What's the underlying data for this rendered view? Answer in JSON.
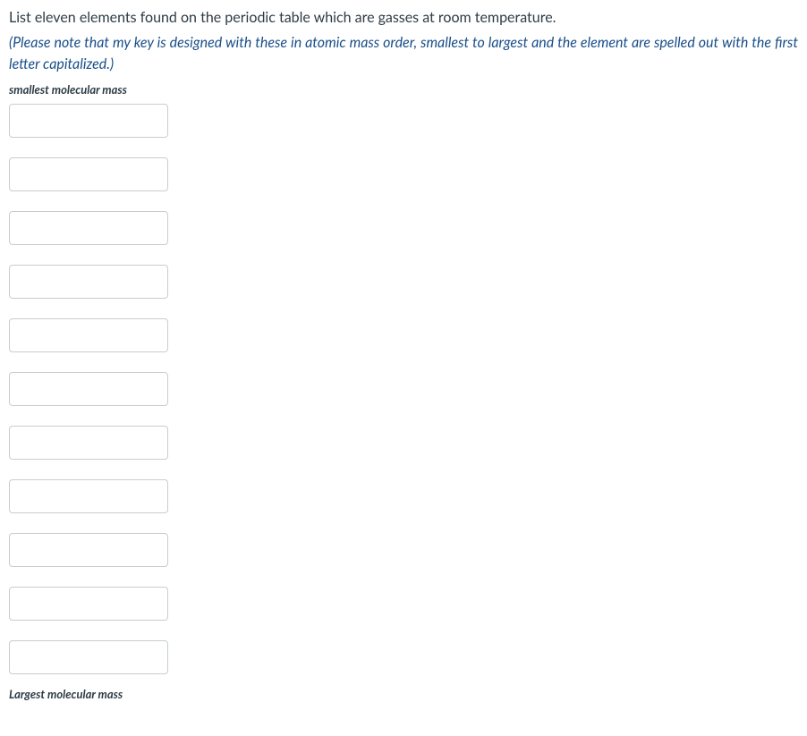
{
  "question": {
    "prompt": "List eleven elements found on the periodic table which are gasses at room temperature.",
    "instruction": "(Please note that my key is designed with these in atomic mass order, smallest to largest and the element are spelled out with the first letter capitalized.)",
    "label_top": "smallest molecular mass",
    "label_bottom": "Largest molecular mass"
  },
  "inputs": [
    {
      "value": ""
    },
    {
      "value": ""
    },
    {
      "value": ""
    },
    {
      "value": ""
    },
    {
      "value": ""
    },
    {
      "value": ""
    },
    {
      "value": ""
    },
    {
      "value": ""
    },
    {
      "value": ""
    },
    {
      "value": ""
    },
    {
      "value": ""
    }
  ],
  "styling": {
    "text_color": "#2d3b45",
    "instruction_color": "#1a4f8a",
    "input_border_color": "#c7cdd1",
    "background_color": "#ffffff",
    "input_width": 178,
    "input_height": 38,
    "input_gap": 22
  }
}
